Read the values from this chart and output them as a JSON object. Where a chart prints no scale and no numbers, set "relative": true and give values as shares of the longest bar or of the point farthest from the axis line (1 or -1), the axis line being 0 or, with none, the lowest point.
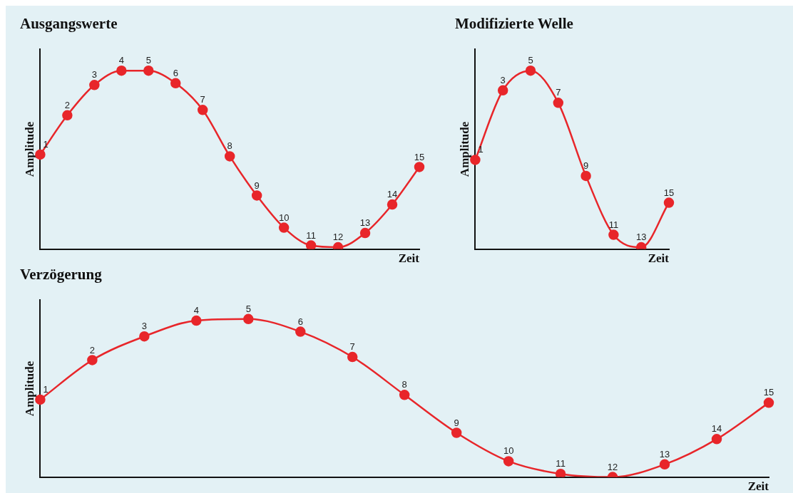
{
  "chart_data": [
    {
      "type": "line",
      "title": "Ausgangswerte",
      "xlabel": "Zeit",
      "ylabel": "Amplitude",
      "relative": true,
      "marker": "circle",
      "line_style": "solid",
      "legend": false,
      "grid": false,
      "categories": [
        "1",
        "2",
        "3",
        "4",
        "5",
        "6",
        "7",
        "8",
        "9",
        "10",
        "11",
        "12",
        "13",
        "14",
        "15"
      ],
      "series": [
        {
          "color": "#e8262a",
          "values": [
            0.53,
            0.75,
            0.92,
            1,
            1,
            0.93,
            0.78,
            0.52,
            0.3,
            0.12,
            0.02,
            0.01,
            0.09,
            0.25,
            0.46
          ]
        }
      ]
    },
    {
      "type": "line",
      "title": "Modifizierte Welle",
      "xlabel": "Zeit",
      "ylabel": "Amplitude",
      "relative": true,
      "marker": "circle",
      "line_style": "solid",
      "legend": false,
      "grid": false,
      "categories": [
        "1",
        "3",
        "5",
        "7",
        "9",
        "11",
        "13",
        "15"
      ],
      "series": [
        {
          "color": "#e8262a",
          "values": [
            0.5,
            0.89,
            1,
            0.82,
            0.41,
            0.08,
            0.01,
            0.26
          ]
        }
      ]
    },
    {
      "type": "line",
      "title": "Verzögerung",
      "xlabel": "Zeit",
      "ylabel": "Amplitude",
      "relative": true,
      "marker": "circle",
      "line_style": "solid",
      "legend": false,
      "grid": false,
      "categories": [
        "1",
        "2",
        "3",
        "4",
        "5",
        "6",
        "7",
        "8",
        "9",
        "10",
        "11",
        "12",
        "13",
        "14",
        "15"
      ],
      "series": [
        {
          "color": "#e8262a",
          "values": [
            0.49,
            0.74,
            0.89,
            0.99,
            1,
            0.92,
            0.76,
            0.52,
            0.28,
            0.1,
            0.02,
            0,
            0.08,
            0.24,
            0.47
          ]
        }
      ]
    }
  ]
}
